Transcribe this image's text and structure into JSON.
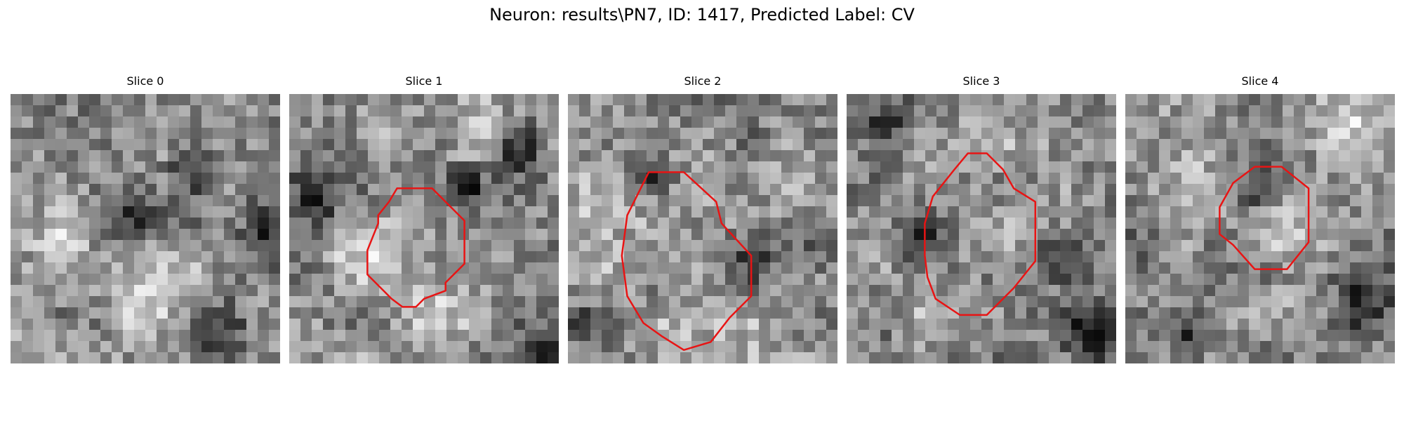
{
  "figure": {
    "title": "Neuron: results\\PN7, ID: 1417, Predicted Label: CV"
  },
  "panels": [
    {
      "title": "Slice 0",
      "seed": 11,
      "dark_spots": [
        [
          0.45,
          0.45,
          0.09
        ],
        [
          0.66,
          0.31,
          0.08
        ],
        [
          0.78,
          0.9,
          0.1
        ],
        [
          0.95,
          0.5,
          0.1
        ]
      ],
      "light_spots": [
        [
          0.5,
          0.75,
          0.15
        ],
        [
          0.2,
          0.55,
          0.1
        ]
      ],
      "contour": []
    },
    {
      "title": "Slice 1",
      "seed": 23,
      "dark_spots": [
        [
          0.1,
          0.4,
          0.12
        ],
        [
          0.65,
          0.35,
          0.08
        ],
        [
          0.85,
          0.2,
          0.08
        ],
        [
          0.95,
          0.95,
          0.09
        ]
      ],
      "light_spots": [
        [
          0.25,
          0.6,
          0.12
        ],
        [
          0.5,
          0.8,
          0.12
        ],
        [
          0.7,
          0.15,
          0.1
        ]
      ],
      "contour": [
        [
          0.4,
          0.35
        ],
        [
          0.53,
          0.35
        ],
        [
          0.65,
          0.47
        ],
        [
          0.65,
          0.63
        ],
        [
          0.58,
          0.7
        ],
        [
          0.58,
          0.73
        ],
        [
          0.5,
          0.76
        ],
        [
          0.47,
          0.79
        ],
        [
          0.42,
          0.79
        ],
        [
          0.38,
          0.76
        ],
        [
          0.29,
          0.67
        ],
        [
          0.29,
          0.58
        ],
        [
          0.33,
          0.48
        ],
        [
          0.33,
          0.45
        ],
        [
          0.37,
          0.4
        ]
      ]
    },
    {
      "title": "Slice 2",
      "seed": 37,
      "dark_spots": [
        [
          0.3,
          0.3,
          0.08
        ],
        [
          0.05,
          0.85,
          0.07
        ],
        [
          0.95,
          0.55,
          0.09
        ],
        [
          0.7,
          0.6,
          0.08
        ]
      ],
      "light_spots": [
        [
          0.1,
          0.45,
          0.15
        ],
        [
          0.45,
          0.9,
          0.15
        ],
        [
          0.85,
          0.35,
          0.1
        ]
      ],
      "contour": [
        [
          0.3,
          0.29
        ],
        [
          0.43,
          0.29
        ],
        [
          0.55,
          0.4
        ],
        [
          0.57,
          0.48
        ],
        [
          0.68,
          0.6
        ],
        [
          0.68,
          0.75
        ],
        [
          0.6,
          0.83
        ],
        [
          0.53,
          0.92
        ],
        [
          0.43,
          0.95
        ],
        [
          0.35,
          0.9
        ],
        [
          0.28,
          0.85
        ],
        [
          0.22,
          0.75
        ],
        [
          0.2,
          0.6
        ],
        [
          0.22,
          0.45
        ]
      ]
    },
    {
      "title": "Slice 3",
      "seed": 53,
      "dark_spots": [
        [
          0.25,
          0.55,
          0.1
        ],
        [
          0.8,
          0.6,
          0.1
        ],
        [
          0.9,
          0.9,
          0.1
        ],
        [
          0.15,
          0.1,
          0.07
        ]
      ],
      "light_spots": [
        [
          0.5,
          0.5,
          0.12
        ],
        [
          0.65,
          0.2,
          0.1
        ],
        [
          0.3,
          0.85,
          0.1
        ]
      ],
      "contour": [
        [
          0.45,
          0.22
        ],
        [
          0.52,
          0.22
        ],
        [
          0.58,
          0.28
        ],
        [
          0.62,
          0.35
        ],
        [
          0.7,
          0.4
        ],
        [
          0.7,
          0.5
        ],
        [
          0.7,
          0.62
        ],
        [
          0.62,
          0.72
        ],
        [
          0.52,
          0.82
        ],
        [
          0.42,
          0.82
        ],
        [
          0.33,
          0.76
        ],
        [
          0.3,
          0.68
        ],
        [
          0.29,
          0.6
        ],
        [
          0.29,
          0.48
        ],
        [
          0.32,
          0.38
        ],
        [
          0.4,
          0.28
        ]
      ]
    },
    {
      "title": "Slice 4",
      "seed": 71,
      "dark_spots": [
        [
          0.48,
          0.35,
          0.07
        ],
        [
          0.88,
          0.75,
          0.12
        ],
        [
          0.05,
          0.6,
          0.1
        ],
        [
          0.25,
          0.9,
          0.08
        ]
      ],
      "light_spots": [
        [
          0.55,
          0.5,
          0.12
        ],
        [
          0.8,
          0.1,
          0.1
        ],
        [
          0.25,
          0.35,
          0.1
        ]
      ],
      "contour": [
        [
          0.48,
          0.27
        ],
        [
          0.58,
          0.27
        ],
        [
          0.68,
          0.35
        ],
        [
          0.68,
          0.55
        ],
        [
          0.6,
          0.65
        ],
        [
          0.48,
          0.65
        ],
        [
          0.4,
          0.56
        ],
        [
          0.35,
          0.52
        ],
        [
          0.35,
          0.42
        ],
        [
          0.4,
          0.33
        ]
      ]
    }
  ],
  "colors": {
    "contour": "#e81414"
  }
}
